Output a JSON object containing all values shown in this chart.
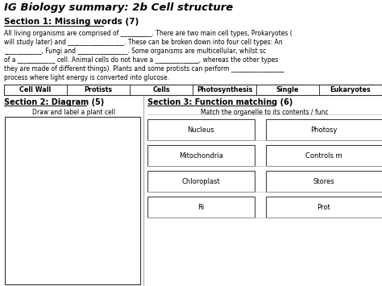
{
  "title": "IG Biology summary: 2b Cell structure",
  "section1_title": "Section 1: Missing words (7)",
  "section1_lines": [
    "All living organisms are comprised of __________. There are two main cell types, Prokaryotes (",
    "will study later) and __________________. These can be broken down into four cell types: An",
    "____________, Fungi and ________________. Some organisms are multicellular, whilst sc",
    "of a ____________ cell. Animal cells do not have a ______________, whereas the other types",
    "they are made of different things). Plants and some protists can perform _________________",
    "process where light energy is converted into glucose."
  ],
  "word_bank": [
    "Cell Wall",
    "Protists",
    "Cells",
    "Photosynthesis",
    "Single",
    "Eukaryotes"
  ],
  "section2_title": "Section 2: Diagram (5)",
  "section2_sub": "Draw and label a plant cell",
  "section3_title": "Section 3: Function matching (6)",
  "section3_sub": "Match the organelle to its contents / func",
  "organelles": [
    "Nucleus",
    "Mitochondria",
    "Chloroplast",
    "Ri"
  ],
  "functions": [
    "Photosy",
    "Controls m",
    "Stores",
    "Prot"
  ],
  "bg_color": "#ffffff",
  "text_color": "#000000",
  "border_color": "#333333"
}
